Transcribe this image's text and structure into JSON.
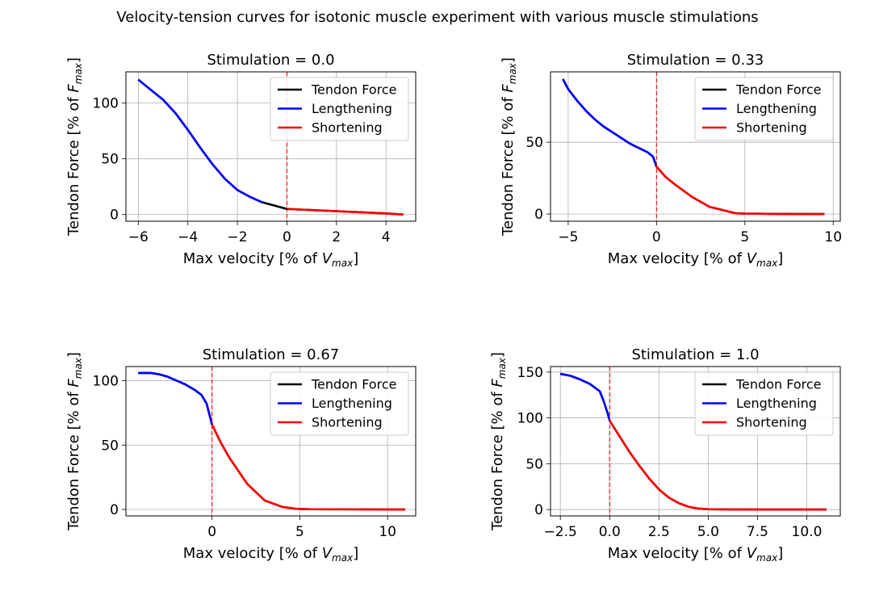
{
  "figure": {
    "title": "Velocity-tension curves for isotonic muscle experiment with various muscle stimulations"
  },
  "chart_data": [
    {
      "type": "line",
      "title": "Stimulation = 0.0",
      "xlabel": "Max velocity [% of V_max]",
      "ylabel": "Tendon Force [% of F_max]",
      "xlim": [
        -6.5,
        5.2
      ],
      "ylim": [
        -6,
        128
      ],
      "xticks": [
        -6,
        -4,
        -2,
        0,
        2,
        4
      ],
      "xtick_labels": [
        "−6",
        "−4",
        "−2",
        "0",
        "2",
        "4"
      ],
      "yticks": [
        0,
        50,
        100
      ],
      "ytick_labels": [
        "0",
        "50",
        "100"
      ],
      "grid": true,
      "legend_position": "top-right",
      "vline_x": 0,
      "series": [
        {
          "name": "Tendon Force",
          "color": "#000000",
          "x": [
            -6.0,
            -5.5,
            -5.0,
            -4.5,
            -4.0,
            -3.5,
            -3.0,
            -2.5,
            -2.0,
            -1.5,
            -1.0,
            -0.5,
            0.0,
            0.5,
            1.0,
            2.0,
            3.0,
            4.0,
            4.7
          ],
          "y": [
            121,
            112,
            103,
            91,
            76,
            60,
            45,
            32,
            22,
            16,
            11,
            8,
            5,
            4.5,
            4,
            3,
            2,
            1,
            0
          ]
        },
        {
          "name": "Lengthening",
          "color": "#0000ff",
          "x": [
            -6.0,
            -5.5,
            -5.0,
            -4.5,
            -4.0,
            -3.5,
            -3.0,
            -2.5,
            -2.0,
            -1.5,
            -1.0
          ],
          "y": [
            121,
            112,
            103,
            91,
            76,
            60,
            45,
            32,
            22,
            16,
            11
          ]
        },
        {
          "name": "Shortening",
          "color": "#ff0000",
          "x": [
            0.05,
            0.5,
            1.0,
            2.0,
            3.0,
            4.0,
            4.7
          ],
          "y": [
            5,
            4.5,
            4,
            3,
            2,
            1,
            0
          ]
        }
      ]
    },
    {
      "type": "line",
      "title": "Stimulation = 0.33",
      "xlabel": "Max velocity [% of V_max]",
      "ylabel": "Tendon Force [% of F_max]",
      "xlim": [
        -6.0,
        10.4
      ],
      "ylim": [
        -5,
        99
      ],
      "xticks": [
        -5,
        0,
        5,
        10
      ],
      "xtick_labels": [
        "−5",
        "0",
        "5",
        "10"
      ],
      "yticks": [
        0,
        50
      ],
      "ytick_labels": [
        "0",
        "50"
      ],
      "grid": true,
      "legend_position": "top-right",
      "vline_x": 0,
      "series": [
        {
          "name": "Tendon Force",
          "color": "#000000",
          "x": [
            -5.3,
            -5.0,
            -4.5,
            -4.0,
            -3.5,
            -3.0,
            -2.5,
            -2.0,
            -1.5,
            -1.0,
            -0.5,
            -0.2,
            0.0,
            0.5,
            1.0,
            2.0,
            3.0,
            4.0,
            4.5,
            5.0,
            7.0,
            9.5
          ],
          "y": [
            94,
            87,
            79,
            72,
            66,
            61,
            57,
            53,
            49,
            46,
            43,
            40,
            33,
            26,
            21,
            12,
            5,
            2,
            0.5,
            0.3,
            0.1,
            0
          ]
        },
        {
          "name": "Lengthening",
          "color": "#0000ff",
          "x": [
            -5.3,
            -5.0,
            -4.5,
            -4.0,
            -3.5,
            -3.0,
            -2.5,
            -2.0,
            -1.5,
            -1.0,
            -0.5,
            -0.2,
            0.0
          ],
          "y": [
            94,
            87,
            79,
            72,
            66,
            61,
            57,
            53,
            49,
            46,
            43,
            40,
            33
          ]
        },
        {
          "name": "Shortening",
          "color": "#ff0000",
          "x": [
            0.0,
            0.5,
            1.0,
            2.0,
            3.0,
            4.0,
            4.5,
            5.0,
            7.0,
            9.5
          ],
          "y": [
            33,
            26,
            21,
            12,
            5,
            2,
            0.5,
            0.3,
            0.1,
            0
          ]
        }
      ]
    },
    {
      "type": "line",
      "title": "Stimulation = 0.67",
      "xlabel": "Max velocity [% of V_max]",
      "ylabel": "Tendon Force [% of F_max]",
      "xlim": [
        -4.9,
        11.6
      ],
      "ylim": [
        -5,
        111
      ],
      "xticks": [
        0,
        5,
        10
      ],
      "xtick_labels": [
        "0",
        "5",
        "10"
      ],
      "yticks": [
        0,
        50,
        100
      ],
      "ytick_labels": [
        "0",
        "50",
        "100"
      ],
      "grid": true,
      "legend_position": "top-right",
      "vline_x": 0,
      "series": [
        {
          "name": "Tendon Force",
          "color": "#000000",
          "x": [
            -4.2,
            -3.5,
            -3.0,
            -2.5,
            -2.0,
            -1.5,
            -1.0,
            -0.6,
            -0.3,
            0.0,
            0.5,
            1.0,
            2.0,
            3.0,
            4.0,
            4.8,
            5.5,
            8.0,
            11.0
          ],
          "y": [
            106,
            106,
            105,
            103,
            100,
            97,
            93,
            89,
            82,
            66,
            52,
            40,
            20,
            7,
            2,
            0.5,
            0.2,
            0.1,
            0
          ]
        },
        {
          "name": "Lengthening",
          "color": "#0000ff",
          "x": [
            -4.2,
            -3.5,
            -3.0,
            -2.5,
            -2.0,
            -1.5,
            -1.0,
            -0.6,
            -0.3,
            0.0
          ],
          "y": [
            106,
            106,
            105,
            103,
            100,
            97,
            93,
            89,
            82,
            66
          ]
        },
        {
          "name": "Shortening",
          "color": "#ff0000",
          "x": [
            0.0,
            0.5,
            1.0,
            2.0,
            3.0,
            4.0,
            4.8,
            5.5,
            8.0,
            11.0
          ],
          "y": [
            66,
            52,
            40,
            20,
            7,
            2,
            0.5,
            0.2,
            0.1,
            0
          ]
        }
      ]
    },
    {
      "type": "line",
      "title": "Stimulation = 1.0",
      "xlabel": "Max velocity [% of V_max]",
      "ylabel": "Tendon Force [% of F_max]",
      "xlim": [
        -3.0,
        11.7
      ],
      "ylim": [
        -7,
        156
      ],
      "xticks": [
        -2.5,
        0.0,
        2.5,
        5.0,
        7.5,
        10.0
      ],
      "xtick_labels": [
        "−2.5",
        "0.0",
        "2.5",
        "5.0",
        "7.5",
        "10.0"
      ],
      "yticks": [
        0,
        50,
        100,
        150
      ],
      "ytick_labels": [
        "0",
        "50",
        "100",
        "150"
      ],
      "grid": true,
      "legend_position": "top-right",
      "vline_x": 0,
      "series": [
        {
          "name": "Tendon Force",
          "color": "#000000",
          "x": [
            -2.5,
            -2.0,
            -1.5,
            -1.0,
            -0.5,
            -0.3,
            -0.1,
            0.0,
            0.5,
            1.0,
            1.5,
            2.0,
            2.5,
            3.0,
            3.5,
            4.0,
            4.5,
            5.0,
            6.0,
            8.0,
            11.0
          ],
          "y": [
            148,
            146,
            142,
            137,
            129,
            118,
            105,
            97,
            80,
            63,
            48,
            34,
            22,
            13,
            7,
            3,
            1,
            0.3,
            0.1,
            0,
            0
          ]
        },
        {
          "name": "Lengthening",
          "color": "#0000ff",
          "x": [
            -2.5,
            -2.0,
            -1.5,
            -1.0,
            -0.5,
            -0.3,
            -0.1,
            0.0
          ],
          "y": [
            148,
            146,
            142,
            137,
            129,
            118,
            105,
            97
          ]
        },
        {
          "name": "Shortening",
          "color": "#ff0000",
          "x": [
            0.0,
            0.5,
            1.0,
            1.5,
            2.0,
            2.5,
            3.0,
            3.5,
            4.0,
            4.5,
            5.0,
            6.0,
            8.0,
            11.0
          ],
          "y": [
            97,
            80,
            63,
            48,
            34,
            22,
            13,
            7,
            3,
            1,
            0.3,
            0.1,
            0,
            0
          ]
        }
      ]
    }
  ]
}
